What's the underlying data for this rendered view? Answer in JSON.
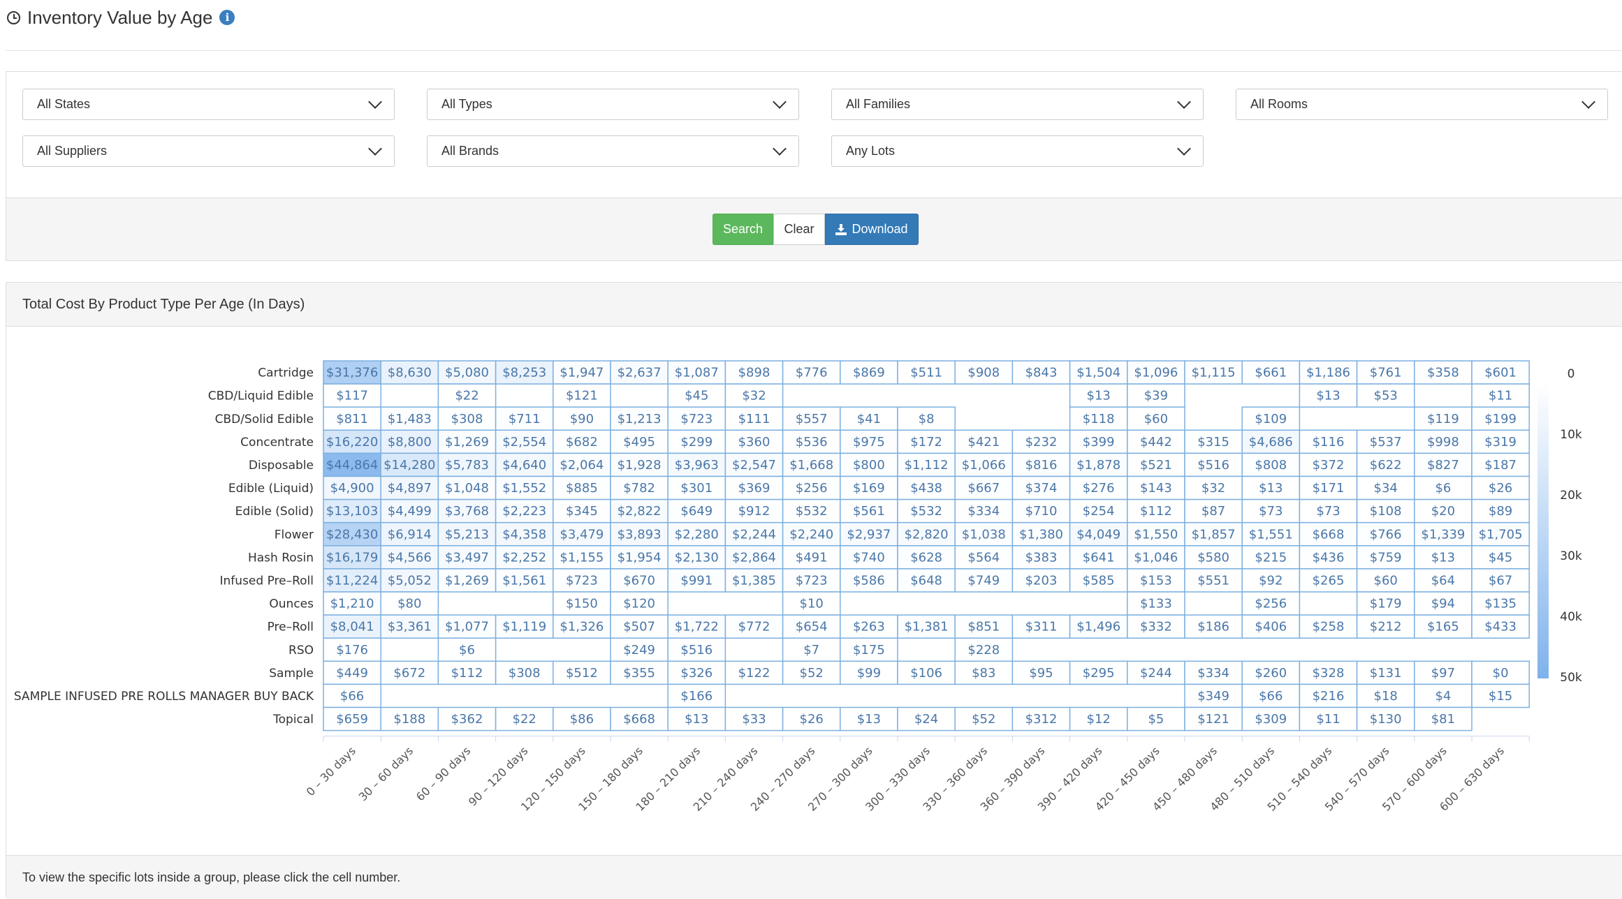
{
  "page": {
    "title": "Inventory Value by Age"
  },
  "filters": {
    "states": "All States",
    "types": "All Types",
    "families": "All Families",
    "rooms": "All Rooms",
    "suppliers": "All Suppliers",
    "brands": "All Brands",
    "lots": "Any Lots"
  },
  "buttons": {
    "search": "Search",
    "clear": "Clear",
    "download": "Download"
  },
  "panel": {
    "title": "Total Cost By Product Type Per Age (In Days)",
    "footer": "To view the specific lots inside a group, please click the cell number."
  },
  "colors": {
    "scale_low": "#ffffff",
    "scale_high": "#7fb2ec",
    "cell_border": "#7cb0e0",
    "cell_text": "#4a77a8"
  },
  "chart_data": {
    "type": "heatmap",
    "title": "Total Cost By Product Type Per Age (In Days)",
    "value_prefix": "$",
    "color_axis": {
      "min": 0,
      "max": 50000,
      "ticks": [
        "0",
        "10k",
        "20k",
        "30k",
        "40k",
        "50k"
      ]
    },
    "x_categories": [
      "0 – 30 days",
      "30 – 60 days",
      "60 – 90 days",
      "90 – 120 days",
      "120 – 150 days",
      "150 – 180 days",
      "180 – 210 days",
      "210 – 240 days",
      "240 – 270 days",
      "270 – 300 days",
      "300 – 330 days",
      "330 – 360 days",
      "360 – 390 days",
      "390 – 420 days",
      "420 – 450 days",
      "450 – 480 days",
      "480 – 510 days",
      "510 – 540 days",
      "540 – 570 days",
      "570 – 600 days",
      "600 – 630 days"
    ],
    "y_categories": [
      "Cartridge",
      "CBD/Liquid Edible",
      "CBD/Solid Edible",
      "Concentrate",
      "Disposable",
      "Edible (Liquid)",
      "Edible (Solid)",
      "Flower",
      "Hash Rosin",
      "Infused Pre–Roll",
      "Ounces",
      "Pre–Roll",
      "RSO",
      "Sample",
      "SAMPLE INFUSED PRE ROLLS MANAGER BUY BACK",
      "Topical"
    ],
    "values": [
      [
        31376,
        8630,
        5080,
        8253,
        1947,
        2637,
        1087,
        898,
        776,
        869,
        511,
        908,
        843,
        1504,
        1096,
        1115,
        661,
        1186,
        761,
        358,
        601
      ],
      [
        117,
        null,
        22,
        null,
        121,
        null,
        45,
        32,
        null,
        null,
        null,
        null,
        null,
        13,
        39,
        null,
        null,
        13,
        53,
        null,
        11
      ],
      [
        811,
        1483,
        308,
        711,
        90,
        1213,
        723,
        111,
        557,
        41,
        8,
        null,
        null,
        118,
        60,
        null,
        109,
        null,
        null,
        119,
        199
      ],
      [
        16220,
        8800,
        1269,
        2554,
        682,
        495,
        299,
        360,
        536,
        975,
        172,
        421,
        232,
        399,
        442,
        315,
        4686,
        116,
        537,
        998,
        319
      ],
      [
        44864,
        14280,
        5783,
        4640,
        2064,
        1928,
        3963,
        2547,
        1668,
        800,
        1112,
        1066,
        816,
        1878,
        521,
        516,
        808,
        372,
        622,
        827,
        187
      ],
      [
        4900,
        4897,
        1048,
        1552,
        885,
        782,
        301,
        369,
        256,
        169,
        438,
        667,
        374,
        276,
        143,
        32,
        13,
        171,
        34,
        6,
        26
      ],
      [
        13103,
        4499,
        3768,
        2223,
        345,
        2822,
        649,
        912,
        532,
        561,
        532,
        334,
        710,
        254,
        112,
        87,
        73,
        73,
        108,
        20,
        89
      ],
      [
        28430,
        6914,
        5213,
        4358,
        3479,
        3893,
        2280,
        2244,
        2240,
        2937,
        2820,
        1038,
        1380,
        4049,
        1550,
        1857,
        1551,
        668,
        766,
        1339,
        1705
      ],
      [
        16179,
        4566,
        3497,
        2252,
        1155,
        1954,
        2130,
        2864,
        491,
        740,
        628,
        564,
        383,
        641,
        1046,
        580,
        215,
        436,
        759,
        13,
        45
      ],
      [
        11224,
        5052,
        1269,
        1561,
        723,
        670,
        991,
        1385,
        723,
        586,
        648,
        749,
        203,
        585,
        153,
        551,
        92,
        265,
        60,
        64,
        67
      ],
      [
        1210,
        80,
        null,
        null,
        150,
        120,
        null,
        null,
        10,
        null,
        null,
        null,
        null,
        null,
        133,
        null,
        256,
        null,
        179,
        94,
        135
      ],
      [
        8041,
        3361,
        1077,
        1119,
        1326,
        507,
        1722,
        772,
        654,
        263,
        1381,
        851,
        311,
        1496,
        332,
        186,
        406,
        258,
        212,
        165,
        433
      ],
      [
        176,
        null,
        6,
        null,
        null,
        249,
        516,
        null,
        7,
        175,
        null,
        228,
        null,
        null,
        null,
        null,
        null,
        null,
        null,
        null,
        null
      ],
      [
        449,
        672,
        112,
        308,
        512,
        355,
        326,
        122,
        52,
        99,
        106,
        83,
        95,
        295,
        244,
        334,
        260,
        328,
        131,
        97,
        0
      ],
      [
        66,
        null,
        null,
        null,
        null,
        null,
        166,
        null,
        null,
        null,
        null,
        null,
        null,
        null,
        null,
        349,
        66,
        216,
        18,
        4,
        15
      ],
      [
        659,
        188,
        362,
        22,
        86,
        668,
        13,
        33,
        26,
        13,
        24,
        52,
        312,
        12,
        5,
        121,
        309,
        11,
        130,
        81,
        null
      ]
    ]
  }
}
